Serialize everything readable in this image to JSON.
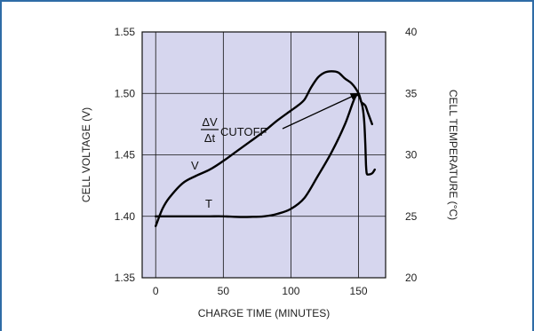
{
  "chart_data": {
    "type": "line",
    "title": "",
    "xlabel": "CHARGE TIME (MINUTES)",
    "ylabel_left": "CELL VOLTAGE (V)",
    "ylabel_right": "CELL TEMPERATURE (°C)",
    "xlim": [
      -10,
      170
    ],
    "ylim_left": [
      1.35,
      1.55
    ],
    "ylim_right": [
      20,
      40
    ],
    "x_ticks": [
      0,
      50,
      100,
      150
    ],
    "y_ticks_left": [
      "1.35",
      "1.40",
      "1.45",
      "1.50",
      "1.55"
    ],
    "y_ticks_right": [
      "20",
      "25",
      "30",
      "35",
      "40"
    ],
    "grid": true,
    "series": [
      {
        "name": "V",
        "axis": "left",
        "x": [
          0,
          5,
          10,
          20,
          30,
          40,
          50,
          60,
          70,
          80,
          90,
          100,
          105,
          110,
          115,
          120,
          125,
          130,
          135,
          140,
          145,
          150,
          152,
          153,
          155,
          157,
          160
        ],
        "y": [
          1.392,
          1.406,
          1.415,
          1.427,
          1.433,
          1.438,
          1.445,
          1.453,
          1.461,
          1.469,
          1.478,
          1.486,
          1.49,
          1.495,
          1.505,
          1.513,
          1.517,
          1.518,
          1.517,
          1.512,
          1.508,
          1.5,
          1.493,
          1.492,
          1.49,
          1.484,
          1.475
        ]
      },
      {
        "name": "T",
        "axis": "right",
        "x": [
          0,
          10,
          20,
          30,
          40,
          50,
          60,
          70,
          80,
          90,
          100,
          110,
          120,
          130,
          140,
          148,
          152,
          154,
          155,
          155.5,
          156,
          157,
          160,
          162
        ],
        "y": [
          25.0,
          25.0,
          25.0,
          25.0,
          25.0,
          25.0,
          24.95,
          24.95,
          25.0,
          25.2,
          25.6,
          26.5,
          28.3,
          30.2,
          32.5,
          34.8,
          34.3,
          33.0,
          30.8,
          29.2,
          28.5,
          28.4,
          28.5,
          28.8
        ]
      }
    ],
    "annotations": [
      {
        "text_num": "ΔV",
        "text_den": "Δt",
        "text_suffix": "CUTOFF"
      },
      {
        "text": "V"
      },
      {
        "text": "T"
      }
    ]
  },
  "colors": {
    "frame": "#2e6ca6",
    "plot_bg": "#d6d6ee",
    "grid": "#111111",
    "curve": "#000000"
  }
}
